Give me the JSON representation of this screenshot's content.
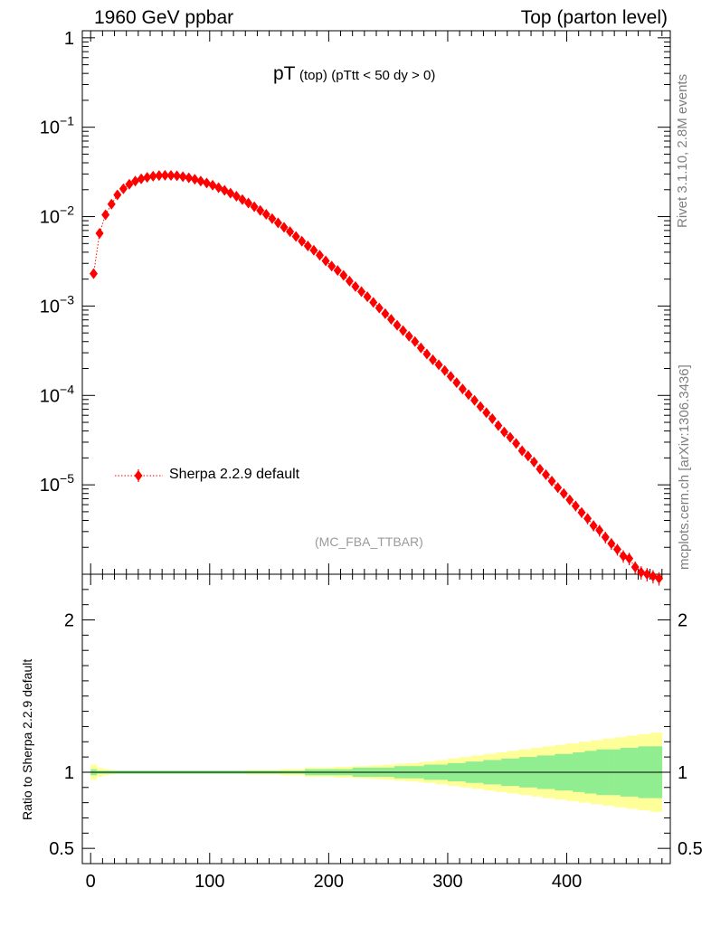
{
  "header": {
    "left": "1960 GeV ppbar",
    "right": "Top (parton level)"
  },
  "side_labels": {
    "rivet": "Rivet 3.1.10,  2.8M events",
    "source": "mcplots.cern.ch [arXiv:1306.3436]"
  },
  "chart_data": [
    {
      "type": "scatter",
      "panel": "main",
      "title_main": "pT",
      "title_sub1": "(top)",
      "title_sub2": "(pTtt < 50 dy > 0)",
      "watermark": "(MC_FBA_TTBAR)",
      "yscale": "log",
      "xlim": [
        -7,
        487
      ],
      "ylim": [
        1e-06,
        1.2
      ],
      "ytick_labels": [
        "1",
        "10",
        "10",
        "10",
        "10",
        "10"
      ],
      "ytick_exponents": [
        "",
        "−1",
        "−2",
        "−3",
        "−4",
        "−5"
      ],
      "legend_position": "lower-left",
      "series": [
        {
          "name": "Sherpa 2.2.9 default",
          "color": "#ff0000",
          "marker": "diamond",
          "line": "dotted",
          "x": [
            2.5,
            7.5,
            12.5,
            17.5,
            22.5,
            27.5,
            32.5,
            37.5,
            42.5,
            47.5,
            52.5,
            57.5,
            62.5,
            67.5,
            72.5,
            77.5,
            82.5,
            87.5,
            92.5,
            97.5,
            102.5,
            107.5,
            112.5,
            117.5,
            122.5,
            127.5,
            132.5,
            137.5,
            142.5,
            147.5,
            152.5,
            157.5,
            162.5,
            167.5,
            172.5,
            177.5,
            182.5,
            187.5,
            192.5,
            197.5,
            202.5,
            207.5,
            212.5,
            217.5,
            222.5,
            227.5,
            232.5,
            237.5,
            242.5,
            247.5,
            252.5,
            257.5,
            262.5,
            267.5,
            272.5,
            277.5,
            282.5,
            287.5,
            292.5,
            297.5,
            302.5,
            307.5,
            312.5,
            317.5,
            322.5,
            327.5,
            332.5,
            337.5,
            342.5,
            347.5,
            352.5,
            357.5,
            362.5,
            367.5,
            372.5,
            377.5,
            382.5,
            387.5,
            392.5,
            397.5,
            402.5,
            407.5,
            412.5,
            417.5,
            422.5,
            427.5,
            432.5,
            437.5,
            442.5,
            447.5,
            452.5,
            457.5,
            462.5,
            467.5,
            472.5,
            477.5
          ],
          "y": [
            0.0023,
            0.0065,
            0.0105,
            0.0138,
            0.0175,
            0.0205,
            0.023,
            0.025,
            0.0265,
            0.0275,
            0.0283,
            0.0288,
            0.029,
            0.0289,
            0.0286,
            0.028,
            0.0272,
            0.0262,
            0.025,
            0.0238,
            0.0225,
            0.0211,
            0.0197,
            0.0183,
            0.0169,
            0.0155,
            0.0142,
            0.0129,
            0.0117,
            0.0106,
            0.0095,
            0.0085,
            0.0076,
            0.0068,
            0.006,
            0.0053,
            0.0047,
            0.0042,
            0.0037,
            0.0032,
            0.0028,
            0.0025,
            0.0022,
            0.0019,
            0.00165,
            0.00145,
            0.00127,
            0.0011,
            0.00095,
            0.00082,
            0.00071,
            0.00061,
            0.00053,
            0.00046,
            0.0004,
            0.00034,
            0.00029,
            0.00025,
            0.00022,
            0.00019,
            0.000163,
            0.000139,
            0.000118,
            0.000102,
            8.8e-05,
            7.5e-05,
            6.4e-05,
            5.5e-05,
            4.6e-05,
            3.9e-05,
            3.4e-05,
            2.9e-05,
            2.4e-05,
            2.1e-05,
            1.8e-05,
            1.5e-05,
            1.3e-05,
            1.1e-05,
            9.3e-06,
            8e-06,
            6.8e-06,
            5.8e-06,
            4.9e-06,
            4.2e-06,
            3.5e-06,
            3.1e-06,
            2.6e-06,
            2.2e-06,
            1.9e-06,
            1.6e-06,
            1.5e-06,
            1.2e-06,
            1.05e-06,
            1e-06,
            9.5e-07,
            9e-07
          ],
          "yerr_rel": [
            0.02,
            0.01,
            0.01,
            0.01,
            0.01,
            0.01,
            0.01,
            0.01,
            0.01,
            0.01,
            0.01,
            0.01,
            0.01,
            0.01,
            0.01,
            0.01,
            0.01,
            0.01,
            0.01,
            0.01,
            0.01,
            0.01,
            0.01,
            0.01,
            0.01,
            0.01,
            0.01,
            0.01,
            0.01,
            0.01,
            0.01,
            0.01,
            0.01,
            0.01,
            0.01,
            0.01,
            0.02,
            0.02,
            0.02,
            0.02,
            0.02,
            0.02,
            0.02,
            0.02,
            0.03,
            0.03,
            0.03,
            0.03,
            0.03,
            0.03,
            0.03,
            0.04,
            0.04,
            0.04,
            0.04,
            0.04,
            0.05,
            0.05,
            0.05,
            0.05,
            0.06,
            0.06,
            0.06,
            0.07,
            0.07,
            0.07,
            0.08,
            0.08,
            0.08,
            0.09,
            0.09,
            0.09,
            0.1,
            0.1,
            0.1,
            0.11,
            0.11,
            0.11,
            0.12,
            0.12,
            0.12,
            0.13,
            0.13,
            0.14,
            0.14,
            0.15,
            0.15,
            0.15,
            0.15,
            0.16,
            0.16,
            0.16,
            0.17,
            0.17,
            0.17,
            0.17
          ]
        }
      ]
    },
    {
      "type": "area",
      "panel": "ratio",
      "ylabel": "Ratio to Sherpa 2.2.9 default",
      "xlim": [
        -7,
        487
      ],
      "ylim": [
        0.4,
        2.3
      ],
      "ytick_labels": [
        "0.5",
        "1",
        "2"
      ],
      "xtick_labels": [
        "0",
        "100",
        "200",
        "300",
        "400"
      ],
      "reference_line": 1,
      "bands": [
        {
          "name": "stat",
          "color": "#90ee90",
          "x_edges": [
            0,
            5,
            10,
            15,
            20,
            25,
            30,
            35,
            40,
            45,
            50,
            55,
            60,
            65,
            70,
            75,
            80,
            85,
            90,
            95,
            100,
            105,
            110,
            115,
            120,
            125,
            130,
            135,
            140,
            145,
            150,
            155,
            160,
            165,
            170,
            175,
            180,
            185,
            190,
            195,
            200,
            205,
            210,
            215,
            220,
            225,
            230,
            235,
            240,
            245,
            250,
            255,
            260,
            265,
            270,
            275,
            280,
            285,
            290,
            295,
            300,
            305,
            310,
            315,
            320,
            325,
            330,
            335,
            340,
            345,
            350,
            355,
            360,
            365,
            370,
            375,
            380,
            385,
            390,
            395,
            400,
            405,
            410,
            415,
            420,
            425,
            430,
            435,
            440,
            445,
            450,
            455,
            460,
            465,
            470,
            475,
            480
          ],
          "half_width": [
            0.02,
            0.01,
            0.01,
            0.01,
            0.01,
            0.01,
            0.01,
            0.01,
            0.01,
            0.01,
            0.01,
            0.01,
            0.01,
            0.01,
            0.01,
            0.01,
            0.01,
            0.01,
            0.01,
            0.01,
            0.01,
            0.01,
            0.01,
            0.01,
            0.01,
            0.01,
            0.01,
            0.01,
            0.01,
            0.01,
            0.01,
            0.01,
            0.01,
            0.01,
            0.01,
            0.01,
            0.02,
            0.02,
            0.02,
            0.02,
            0.02,
            0.02,
            0.02,
            0.02,
            0.03,
            0.03,
            0.03,
            0.03,
            0.03,
            0.03,
            0.03,
            0.04,
            0.04,
            0.04,
            0.04,
            0.04,
            0.05,
            0.05,
            0.05,
            0.05,
            0.06,
            0.06,
            0.06,
            0.07,
            0.07,
            0.07,
            0.08,
            0.08,
            0.08,
            0.09,
            0.09,
            0.09,
            0.1,
            0.1,
            0.1,
            0.11,
            0.11,
            0.11,
            0.12,
            0.12,
            0.12,
            0.13,
            0.13,
            0.14,
            0.14,
            0.15,
            0.15,
            0.15,
            0.15,
            0.16,
            0.16,
            0.16,
            0.17,
            0.17,
            0.17,
            0.17
          ]
        },
        {
          "name": "total",
          "color": "#ffff99",
          "x_edges": [
            0,
            5,
            10,
            15,
            20,
            25,
            30,
            35,
            40,
            45,
            50,
            55,
            60,
            65,
            70,
            75,
            80,
            85,
            90,
            95,
            100,
            105,
            110,
            115,
            120,
            125,
            130,
            135,
            140,
            145,
            150,
            155,
            160,
            165,
            170,
            175,
            180,
            185,
            190,
            195,
            200,
            205,
            210,
            215,
            220,
            225,
            230,
            235,
            240,
            245,
            250,
            255,
            260,
            265,
            270,
            275,
            280,
            285,
            290,
            295,
            300,
            305,
            310,
            315,
            320,
            325,
            330,
            335,
            340,
            345,
            350,
            355,
            360,
            365,
            370,
            375,
            380,
            385,
            390,
            395,
            400,
            405,
            410,
            415,
            420,
            425,
            430,
            435,
            440,
            445,
            450,
            455,
            460,
            465,
            470,
            475,
            480
          ],
          "half_width": [
            0.05,
            0.03,
            0.02,
            0.015,
            0.01,
            0.01,
            0.01,
            0.01,
            0.01,
            0.01,
            0.01,
            0.01,
            0.01,
            0.01,
            0.01,
            0.01,
            0.01,
            0.01,
            0.01,
            0.01,
            0.01,
            0.01,
            0.01,
            0.01,
            0.01,
            0.01,
            0.015,
            0.015,
            0.015,
            0.015,
            0.015,
            0.015,
            0.02,
            0.02,
            0.02,
            0.02,
            0.03,
            0.03,
            0.03,
            0.03,
            0.03,
            0.035,
            0.035,
            0.035,
            0.04,
            0.04,
            0.04,
            0.045,
            0.045,
            0.05,
            0.05,
            0.055,
            0.055,
            0.06,
            0.06,
            0.065,
            0.07,
            0.07,
            0.08,
            0.08,
            0.09,
            0.09,
            0.1,
            0.1,
            0.11,
            0.11,
            0.12,
            0.12,
            0.13,
            0.13,
            0.14,
            0.14,
            0.15,
            0.15,
            0.16,
            0.16,
            0.17,
            0.17,
            0.18,
            0.18,
            0.19,
            0.19,
            0.2,
            0.2,
            0.21,
            0.21,
            0.22,
            0.22,
            0.23,
            0.23,
            0.24,
            0.24,
            0.25,
            0.25,
            0.26,
            0.26
          ]
        }
      ]
    }
  ]
}
